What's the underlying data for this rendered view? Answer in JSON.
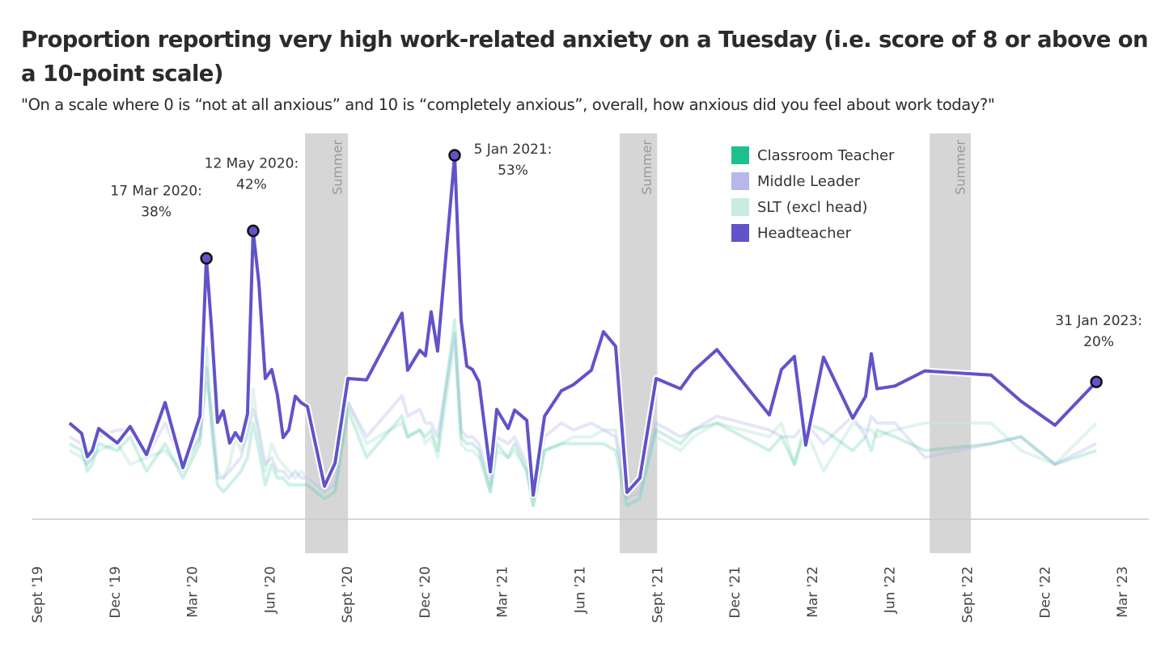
{
  "title": "Proportion reporting very high work-related anxiety on a Tuesday (i.e. score of 8 or above on a 10-point scale)",
  "subtitle": "\"On a scale where 0 is “not at all anxious” and 10 is “completely anxious”, overall, how anxious did you feel about work today?\"",
  "chart_data": {
    "type": "line",
    "title": "Proportion reporting very high work-related anxiety on a Tuesday (i.e. score of 8 or above on a 10-point scale)",
    "subtitle": "\"On a scale where 0 is “not at all anxious” and 10 is “completely anxious”, overall, how anxious did you feel about work today?\"",
    "xlabel": "",
    "ylabel": "",
    "x_unit": "months since Sept 2019",
    "xlim": [
      0,
      42
    ],
    "ylim": [
      0,
      55
    ],
    "y_unit": "%",
    "grid": false,
    "legend_position": "top-right",
    "x_ticks": [
      {
        "x": 0,
        "label": "Sept '19"
      },
      {
        "x": 3,
        "label": "Dec '19"
      },
      {
        "x": 6,
        "label": "Mar '20"
      },
      {
        "x": 9,
        "label": "Jun '20"
      },
      {
        "x": 12,
        "label": "Sept '20"
      },
      {
        "x": 15,
        "label": "Dec '20"
      },
      {
        "x": 18,
        "label": "Mar '21"
      },
      {
        "x": 21,
        "label": "Jun '21"
      },
      {
        "x": 24,
        "label": "Sept '21"
      },
      {
        "x": 27,
        "label": "Dec '21"
      },
      {
        "x": 30,
        "label": "Mar '22"
      },
      {
        "x": 33,
        "label": "Jun '22"
      },
      {
        "x": 36,
        "label": "Sept '22"
      },
      {
        "x": 39,
        "label": "Dec '22"
      },
      {
        "x": 42,
        "label": "Mar '23"
      }
    ],
    "shaded_regions": [
      {
        "label": "Summer",
        "x_start": 10.37,
        "x_end": 12.03
      },
      {
        "label": "Summer",
        "x_start": 22.55,
        "x_end": 24.0
      },
      {
        "label": "Summer",
        "x_start": 34.55,
        "x_end": 36.14
      }
    ],
    "x": [
      1.25,
      1.72,
      1.94,
      2.13,
      2.38,
      3.1,
      3.6,
      4.23,
      4.95,
      5.64,
      6.3,
      6.55,
      6.76,
      6.98,
      7.2,
      7.45,
      7.67,
      7.89,
      8.14,
      8.36,
      8.58,
      8.83,
      9.08,
      9.3,
      9.52,
      9.74,
      9.99,
      10.21,
      10.46,
      11.12,
      11.53,
      12.03,
      12.75,
      14.12,
      14.34,
      14.81,
      15.03,
      15.25,
      15.5,
      16.16,
      16.41,
      16.63,
      16.85,
      17.1,
      17.54,
      17.79,
      18.23,
      18.48,
      18.95,
      19.2,
      19.64,
      20.29,
      20.76,
      21.45,
      21.92,
      22.39,
      22.83,
      23.33,
      23.96,
      24.9,
      25.4,
      26.31,
      28.34,
      28.81,
      29.31,
      29.75,
      30.44,
      31.57,
      32.07,
      32.29,
      32.51,
      33.2,
      34.36,
      36.92,
      38.08,
      39.4,
      41.0
    ],
    "series": [
      {
        "name": "Classroom Teacher",
        "color": "#1dbf8f",
        "values": [
          11,
          10,
          7,
          8,
          11,
          10,
          12,
          7,
          11,
          6,
          11,
          25,
          13,
          5,
          4,
          5,
          6,
          7,
          9,
          14,
          10,
          5,
          8,
          6,
          6,
          5,
          5,
          5,
          5,
          3,
          4,
          16,
          9,
          15,
          12,
          13,
          12,
          13,
          10,
          29,
          12,
          11,
          11,
          10,
          4,
          11,
          9,
          11,
          7,
          2,
          10,
          11,
          11,
          11,
          11,
          10,
          2,
          3,
          13,
          11,
          13,
          14,
          10,
          12,
          8,
          14,
          13,
          10,
          12,
          10,
          13,
          12,
          10,
          11,
          12,
          8,
          10
        ]
      },
      {
        "name": "Middle Leader",
        "color": "#b7b7ee",
        "values": [
          12,
          11,
          8,
          9,
          12,
          13,
          13,
          9,
          14,
          8,
          12,
          22,
          14,
          6,
          6,
          7,
          8,
          9,
          13,
          16,
          13,
          8,
          9,
          7,
          7,
          6,
          7,
          6,
          6,
          4,
          5,
          17,
          12,
          18,
          15,
          16,
          14,
          14,
          12,
          27,
          13,
          12,
          12,
          11,
          5,
          12,
          11,
          12,
          8,
          3,
          12,
          14,
          13,
          14,
          13,
          12,
          3,
          4,
          14,
          12,
          13,
          15,
          13,
          12,
          12,
          14,
          11,
          15,
          12,
          15,
          14,
          14,
          9,
          11,
          12,
          8,
          11
        ]
      },
      {
        "name": "SLT (excl head)",
        "color": "#c9ebe0",
        "values": [
          10,
          9,
          8,
          9,
          10,
          11,
          8,
          9,
          10,
          7,
          12,
          20,
          16,
          7,
          6,
          8,
          12,
          10,
          12,
          19,
          12,
          7,
          11,
          9,
          8,
          7,
          6,
          7,
          6,
          3,
          5,
          17,
          11,
          14,
          12,
          13,
          11,
          12,
          9,
          26,
          11,
          10,
          10,
          9,
          4,
          10,
          9,
          10,
          7,
          2,
          10,
          11,
          12,
          12,
          13,
          13,
          2,
          3,
          12,
          10,
          12,
          14,
          12,
          14,
          8,
          13,
          7,
          14,
          13,
          13,
          12,
          13,
          14,
          14,
          10,
          8,
          14
        ]
      },
      {
        "name": "Headteacher",
        "color": "#6153c9",
        "values": [
          14.0,
          12.5,
          9.1,
          10.0,
          13.2,
          11.1,
          13.5,
          9.4,
          17.0,
          7.5,
          15.0,
          38,
          27.3,
          14.1,
          15.8,
          11.1,
          12.6,
          11.4,
          15.3,
          42,
          34.4,
          20.5,
          21.8,
          18.1,
          11.9,
          13.0,
          17.9,
          17.0,
          16.4,
          4.8,
          8.2,
          20.5,
          20.3,
          30.0,
          21.7,
          24.6,
          23.8,
          30.2,
          24.5,
          53,
          28.9,
          22.3,
          21.8,
          20.0,
          6.9,
          16.0,
          13.2,
          15.9,
          14.4,
          3.5,
          15.0,
          18.7,
          19.6,
          21.7,
          27.3,
          25.2,
          3.9,
          6.0,
          20.5,
          19.0,
          21.6,
          24.7,
          15.2,
          21.8,
          23.7,
          10.8,
          23.6,
          14.7,
          17.9,
          24.1,
          19.0,
          19.4,
          21.6,
          21.0,
          17.2,
          13.7,
          20
        ]
      }
    ],
    "annotations": [
      {
        "label": "17 Mar 2020:",
        "value_label": "38%",
        "x": 6.55,
        "y": 38
      },
      {
        "label": "12 May 2020:",
        "value_label": "42%",
        "x": 8.36,
        "y": 42
      },
      {
        "label": "5 Jan 2021:",
        "value_label": "53%",
        "x": 16.16,
        "y": 53
      },
      {
        "label": "31 Jan 2023:",
        "value_label": "20%",
        "x": 41.0,
        "y": 20
      }
    ]
  },
  "legend": [
    {
      "label": "Classroom Teacher",
      "color": "#1dbf8f"
    },
    {
      "label": "Middle Leader",
      "color": "#b7b7ee"
    },
    {
      "label": "SLT (excl head)",
      "color": "#c9ebe0"
    },
    {
      "label": "Headteacher",
      "color": "#6153c9"
    }
  ]
}
